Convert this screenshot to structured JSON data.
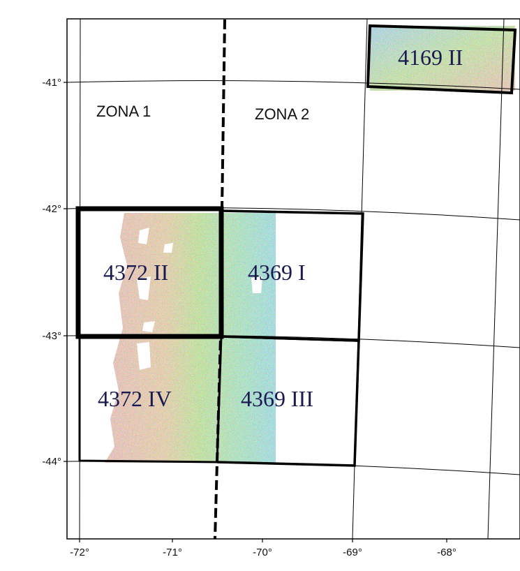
{
  "map": {
    "y_ticks": [
      {
        "label": "-41°"
      },
      {
        "label": "-42°"
      },
      {
        "label": "-43°"
      },
      {
        "label": "-44°"
      }
    ],
    "x_ticks": [
      {
        "label": "-72°"
      },
      {
        "label": "-71°"
      },
      {
        "label": "-70°"
      },
      {
        "label": "-69°"
      },
      {
        "label": "-68°"
      }
    ],
    "zones": [
      {
        "label": "ZONA 1"
      },
      {
        "label": "ZONA 2"
      }
    ],
    "sheets": [
      {
        "label": "4169 II"
      },
      {
        "label": "4372 II"
      },
      {
        "label": "4369 I"
      },
      {
        "label": "4372 IV"
      },
      {
        "label": "4369 III"
      }
    ],
    "colors": {
      "frame": "#000000",
      "sheet_text": "#1a1a50",
      "raster_palette": [
        "#f4a6a6",
        "#b4e07a",
        "#7fd6e8",
        "#f0d37a",
        "#c9a3e8",
        "#9fe0b0"
      ]
    }
  }
}
